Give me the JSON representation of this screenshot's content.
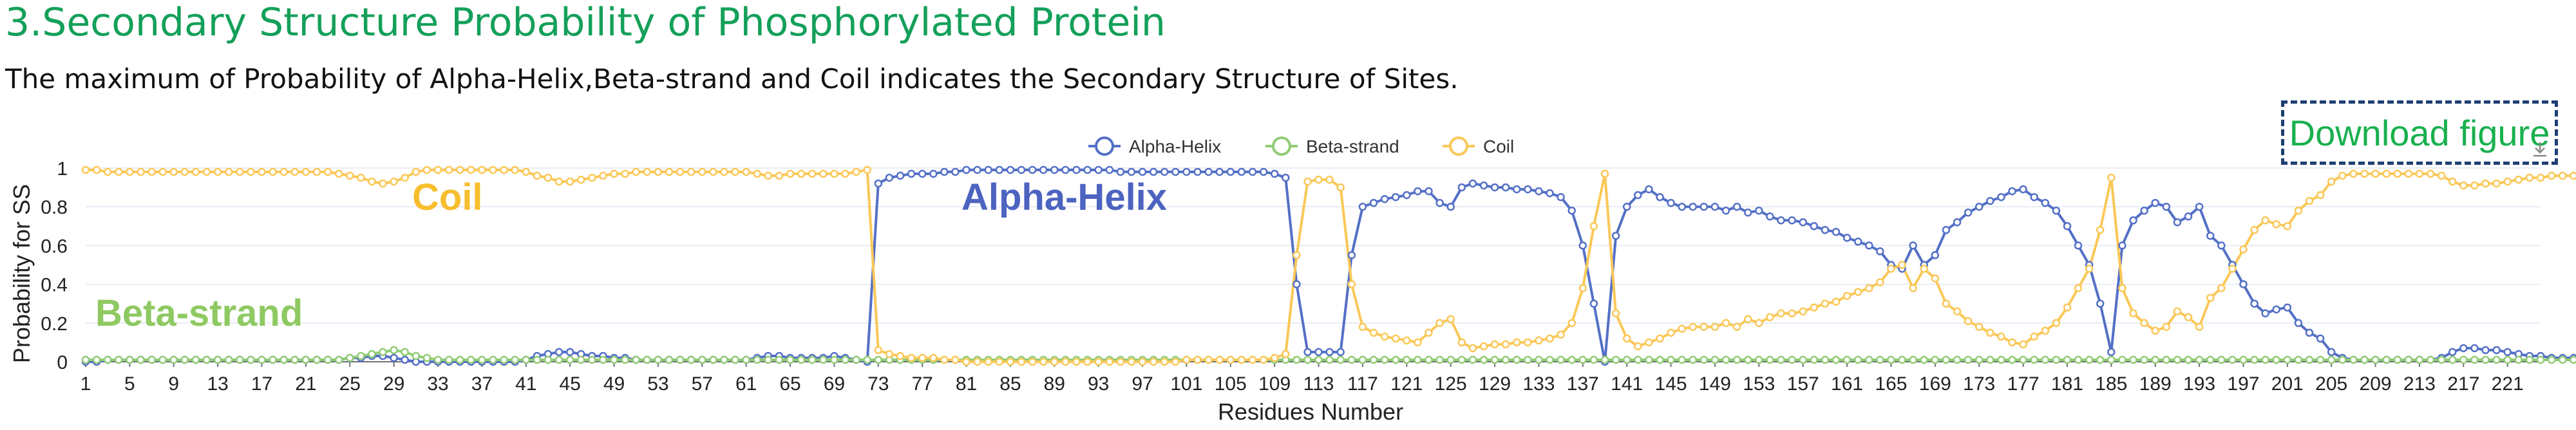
{
  "page": {
    "title": "3.Secondary Structure Probability of Phosphorylated Protein",
    "description": "The maximum of Probability of Alpha-Helix,Beta-strand and Coil indicates the Secondary Structure of Sites.",
    "download_label": "Download figure"
  },
  "chart_data": {
    "type": "line",
    "xlabel": "Residues Number",
    "ylabel": "Probability for SS",
    "x_range": [
      1,
      224
    ],
    "ylim": [
      0,
      1
    ],
    "yticks": [
      0,
      0.2,
      0.4,
      0.6,
      0.8,
      1
    ],
    "ytick_labels": [
      "0",
      "0.2",
      "0.4",
      "0.6",
      "0.8",
      "1"
    ],
    "xtick_labels": [
      "1",
      "5",
      "9",
      "13",
      "17",
      "21",
      "25",
      "29",
      "33",
      "37",
      "41",
      "45",
      "49",
      "53",
      "57",
      "61",
      "65",
      "69",
      "73",
      "77",
      "81",
      "85",
      "89",
      "93",
      "97",
      "101",
      "105",
      "109",
      "113",
      "117",
      "121",
      "125",
      "129",
      "133",
      "137",
      "141",
      "145",
      "149",
      "153",
      "157",
      "161",
      "165",
      "169",
      "173",
      "177",
      "181",
      "185",
      "189",
      "193",
      "197",
      "201",
      "205",
      "209",
      "213",
      "217",
      "221"
    ],
    "grid": true,
    "legend_position": "top-center",
    "annotations": [
      {
        "text": "Coil",
        "series": "Coil",
        "color": "#f7be2e"
      },
      {
        "text": "Alpha-Helix",
        "series": "Alpha-Helix",
        "color": "#4c63c0"
      },
      {
        "text": "Beta-strand",
        "series": "Beta-strand",
        "color": "#8ec962"
      }
    ],
    "series": [
      {
        "name": "Alpha-Helix",
        "color": "#5470c6",
        "values": [
          0.0,
          0.0,
          0.01,
          0.01,
          0.01,
          0.01,
          0.01,
          0.01,
          0.01,
          0.01,
          0.01,
          0.01,
          0.01,
          0.01,
          0.01,
          0.01,
          0.01,
          0.01,
          0.01,
          0.01,
          0.01,
          0.01,
          0.01,
          0.01,
          0.02,
          0.02,
          0.03,
          0.03,
          0.02,
          0.01,
          0.0,
          0.0,
          0.0,
          0.0,
          0.0,
          0.0,
          0.0,
          0.0,
          0.0,
          0.0,
          0.01,
          0.03,
          0.04,
          0.05,
          0.05,
          0.04,
          0.03,
          0.03,
          0.02,
          0.02,
          0.01,
          0.01,
          0.01,
          0.01,
          0.01,
          0.01,
          0.01,
          0.01,
          0.01,
          0.01,
          0.01,
          0.02,
          0.03,
          0.03,
          0.02,
          0.02,
          0.02,
          0.02,
          0.03,
          0.02,
          0.01,
          0.0,
          0.92,
          0.95,
          0.96,
          0.97,
          0.97,
          0.97,
          0.98,
          0.98,
          0.99,
          0.99,
          0.99,
          0.99,
          0.99,
          0.99,
          0.99,
          0.99,
          0.99,
          0.99,
          0.99,
          0.99,
          0.99,
          0.99,
          0.98,
          0.98,
          0.98,
          0.98,
          0.98,
          0.98,
          0.98,
          0.98,
          0.98,
          0.98,
          0.98,
          0.98,
          0.98,
          0.98,
          0.97,
          0.95,
          0.4,
          0.05,
          0.05,
          0.05,
          0.05,
          0.55,
          0.8,
          0.82,
          0.84,
          0.85,
          0.86,
          0.88,
          0.88,
          0.82,
          0.8,
          0.9,
          0.92,
          0.91,
          0.9,
          0.9,
          0.89,
          0.89,
          0.88,
          0.87,
          0.85,
          0.78,
          0.6,
          0.3,
          0.0,
          0.65,
          0.8,
          0.86,
          0.89,
          0.85,
          0.82,
          0.8,
          0.8,
          0.8,
          0.8,
          0.78,
          0.8,
          0.77,
          0.78,
          0.75,
          0.73,
          0.73,
          0.72,
          0.7,
          0.68,
          0.67,
          0.64,
          0.62,
          0.6,
          0.57,
          0.5,
          0.48,
          0.6,
          0.5,
          0.55,
          0.68,
          0.72,
          0.77,
          0.8,
          0.83,
          0.85,
          0.88,
          0.89,
          0.85,
          0.82,
          0.78,
          0.7,
          0.6,
          0.5,
          0.3,
          0.05,
          0.6,
          0.73,
          0.78,
          0.82,
          0.8,
          0.72,
          0.75,
          0.8,
          0.65,
          0.6,
          0.5,
          0.4,
          0.3,
          0.25,
          0.27,
          0.28,
          0.2,
          0.15,
          0.12,
          0.05,
          0.02,
          0.01,
          0.01,
          0.01,
          0.01,
          0.01,
          0.01,
          0.01,
          0.01,
          0.02,
          0.05,
          0.07,
          0.07,
          0.06,
          0.06,
          0.05,
          0.04,
          0.03,
          0.03,
          0.02,
          0.02,
          0.02,
          0.02,
          0.02,
          0.01,
          0.01,
          0.01,
          0.01,
          0.01,
          0.02,
          0.02,
          0.01,
          0.01
        ]
      },
      {
        "name": "Beta-strand",
        "color": "#91cc75",
        "values": [
          0.01,
          0.01,
          0.01,
          0.01,
          0.01,
          0.01,
          0.01,
          0.01,
          0.01,
          0.01,
          0.01,
          0.01,
          0.01,
          0.01,
          0.01,
          0.01,
          0.01,
          0.01,
          0.01,
          0.01,
          0.01,
          0.01,
          0.01,
          0.01,
          0.02,
          0.03,
          0.04,
          0.05,
          0.06,
          0.05,
          0.03,
          0.02,
          0.01,
          0.01,
          0.01,
          0.01,
          0.01,
          0.01,
          0.01,
          0.01,
          0.01,
          0.01,
          0.01,
          0.01,
          0.01,
          0.01,
          0.01,
          0.01,
          0.01,
          0.01,
          0.01,
          0.01,
          0.01,
          0.01,
          0.01,
          0.01,
          0.01,
          0.01,
          0.01,
          0.01,
          0.01,
          0.01,
          0.01,
          0.01,
          0.01,
          0.01,
          0.01,
          0.01,
          0.01,
          0.01,
          0.01,
          0.01,
          0.01,
          0.01,
          0.01,
          0.01,
          0.01,
          0.01,
          0.01,
          0.01,
          0.01,
          0.01,
          0.01,
          0.01,
          0.01,
          0.01,
          0.01,
          0.01,
          0.01,
          0.01,
          0.01,
          0.01,
          0.01,
          0.01,
          0.01,
          0.01,
          0.01,
          0.01,
          0.01,
          0.01,
          0.01,
          0.01,
          0.01,
          0.01,
          0.01,
          0.01,
          0.01,
          0.01,
          0.01,
          0.01,
          0.01,
          0.01,
          0.01,
          0.01,
          0.01,
          0.01,
          0.01,
          0.01,
          0.01,
          0.01,
          0.01,
          0.01,
          0.01,
          0.01,
          0.01,
          0.01,
          0.01,
          0.01,
          0.01,
          0.01,
          0.01,
          0.01,
          0.01,
          0.01,
          0.01,
          0.01,
          0.01,
          0.01,
          0.01,
          0.01,
          0.01,
          0.01,
          0.01,
          0.01,
          0.01,
          0.01,
          0.01,
          0.01,
          0.01,
          0.01,
          0.01,
          0.01,
          0.01,
          0.01,
          0.01,
          0.01,
          0.01,
          0.01,
          0.01,
          0.01,
          0.01,
          0.01,
          0.01,
          0.01,
          0.01,
          0.01,
          0.01,
          0.01,
          0.01,
          0.01,
          0.01,
          0.01,
          0.01,
          0.01,
          0.01,
          0.01,
          0.01,
          0.01,
          0.01,
          0.01,
          0.01,
          0.01,
          0.01,
          0.01,
          0.01,
          0.01,
          0.01,
          0.01,
          0.01,
          0.01,
          0.01,
          0.01,
          0.01,
          0.01,
          0.01,
          0.01,
          0.01,
          0.01,
          0.01,
          0.01,
          0.01,
          0.01,
          0.01,
          0.01,
          0.01,
          0.01,
          0.01,
          0.01,
          0.01,
          0.01,
          0.01,
          0.01,
          0.01,
          0.01,
          0.01,
          0.01,
          0.01,
          0.01,
          0.01,
          0.01,
          0.01,
          0.01,
          0.01,
          0.01,
          0.01,
          0.01,
          0.01,
          0.01,
          0.01,
          0.01
        ]
      },
      {
        "name": "Coil",
        "color": "#fac858",
        "values": [
          0.99,
          0.99,
          0.98,
          0.98,
          0.98,
          0.98,
          0.98,
          0.98,
          0.98,
          0.98,
          0.98,
          0.98,
          0.98,
          0.98,
          0.98,
          0.98,
          0.98,
          0.98,
          0.98,
          0.98,
          0.98,
          0.98,
          0.98,
          0.97,
          0.96,
          0.95,
          0.93,
          0.92,
          0.93,
          0.95,
          0.98,
          0.99,
          0.99,
          0.99,
          0.99,
          0.99,
          0.99,
          0.99,
          0.99,
          0.99,
          0.98,
          0.96,
          0.95,
          0.93,
          0.93,
          0.94,
          0.95,
          0.96,
          0.97,
          0.97,
          0.98,
          0.98,
          0.98,
          0.98,
          0.98,
          0.98,
          0.98,
          0.98,
          0.98,
          0.98,
          0.98,
          0.97,
          0.96,
          0.96,
          0.97,
          0.97,
          0.97,
          0.97,
          0.97,
          0.97,
          0.98,
          0.99,
          0.06,
          0.04,
          0.03,
          0.02,
          0.02,
          0.02,
          0.01,
          0.01,
          0.0,
          0.0,
          0.0,
          0.0,
          0.0,
          0.0,
          0.0,
          0.0,
          0.0,
          0.0,
          0.0,
          0.0,
          0.0,
          0.0,
          0.0,
          0.0,
          0.0,
          0.0,
          0.0,
          0.0,
          0.01,
          0.01,
          0.01,
          0.01,
          0.01,
          0.01,
          0.01,
          0.01,
          0.02,
          0.04,
          0.55,
          0.93,
          0.94,
          0.94,
          0.9,
          0.4,
          0.18,
          0.15,
          0.13,
          0.12,
          0.11,
          0.1,
          0.15,
          0.2,
          0.22,
          0.1,
          0.07,
          0.08,
          0.09,
          0.09,
          0.1,
          0.1,
          0.11,
          0.12,
          0.14,
          0.2,
          0.38,
          0.7,
          0.97,
          0.25,
          0.12,
          0.08,
          0.1,
          0.12,
          0.15,
          0.17,
          0.18,
          0.18,
          0.18,
          0.2,
          0.18,
          0.22,
          0.2,
          0.23,
          0.25,
          0.25,
          0.26,
          0.28,
          0.3,
          0.31,
          0.34,
          0.36,
          0.38,
          0.41,
          0.48,
          0.5,
          0.38,
          0.48,
          0.43,
          0.3,
          0.26,
          0.21,
          0.18,
          0.15,
          0.13,
          0.1,
          0.09,
          0.13,
          0.16,
          0.2,
          0.28,
          0.38,
          0.48,
          0.68,
          0.95,
          0.38,
          0.25,
          0.2,
          0.16,
          0.18,
          0.26,
          0.23,
          0.18,
          0.33,
          0.38,
          0.48,
          0.58,
          0.68,
          0.73,
          0.71,
          0.7,
          0.78,
          0.83,
          0.86,
          0.93,
          0.96,
          0.97,
          0.97,
          0.97,
          0.97,
          0.97,
          0.97,
          0.97,
          0.97,
          0.96,
          0.93,
          0.91,
          0.91,
          0.92,
          0.92,
          0.93,
          0.94,
          0.95,
          0.95,
          0.96,
          0.96,
          0.96,
          0.96,
          0.96,
          0.97,
          0.97,
          0.97,
          0.97,
          0.97,
          0.96,
          0.96,
          0.97,
          0.97
        ]
      }
    ]
  }
}
